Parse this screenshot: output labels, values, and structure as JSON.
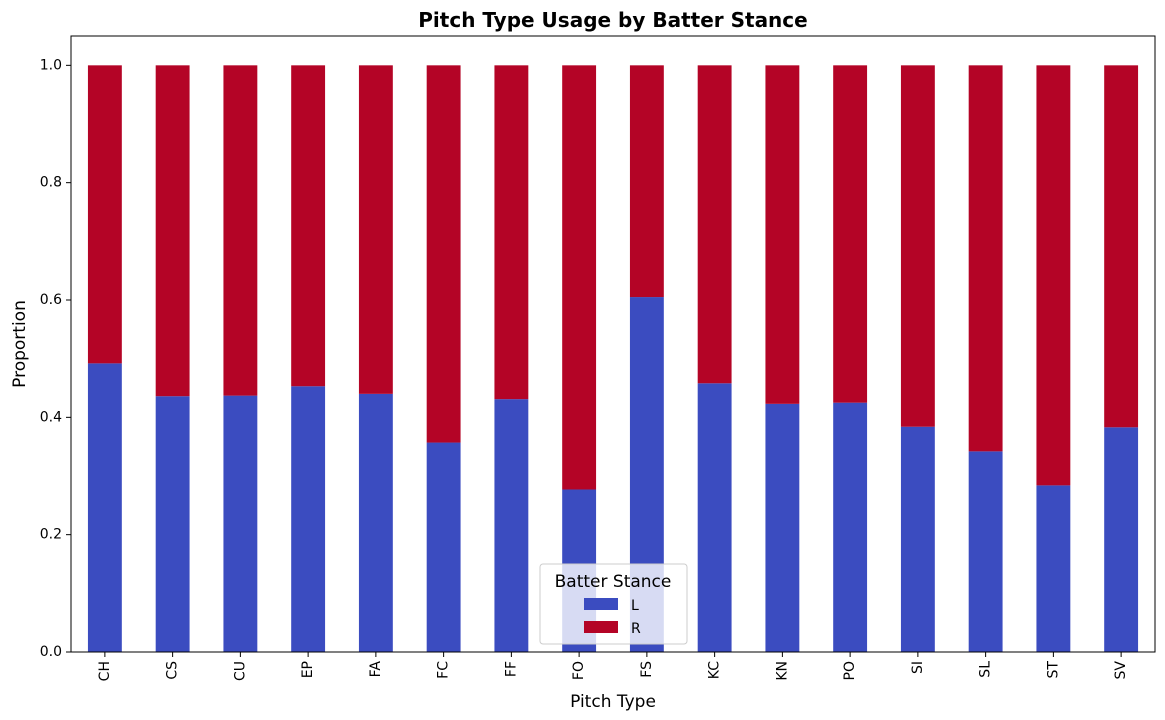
{
  "chart_data": {
    "type": "bar",
    "stacked": true,
    "title": "Pitch Type Usage by Batter Stance",
    "xlabel": "Pitch Type",
    "ylabel": "Proportion",
    "ylim": [
      0,
      1.05
    ],
    "yticks": [
      "0.0",
      "0.2",
      "0.4",
      "0.6",
      "0.8",
      "1.0"
    ],
    "categories": [
      "CH",
      "CS",
      "CU",
      "EP",
      "FA",
      "FC",
      "FF",
      "FO",
      "FS",
      "KC",
      "KN",
      "PO",
      "SI",
      "SL",
      "ST",
      "SV"
    ],
    "series": [
      {
        "name": "L",
        "color": "#3b4cc0",
        "values": [
          0.492,
          0.436,
          0.437,
          0.453,
          0.44,
          0.357,
          0.431,
          0.277,
          0.605,
          0.458,
          0.423,
          0.425,
          0.384,
          0.342,
          0.284,
          0.383
        ]
      },
      {
        "name": "R",
        "color": "#b40426",
        "values": [
          0.508,
          0.564,
          0.563,
          0.547,
          0.56,
          0.643,
          0.569,
          0.723,
          0.395,
          0.542,
          0.577,
          0.575,
          0.616,
          0.658,
          0.716,
          0.617
        ]
      }
    ],
    "grid": false,
    "legend": {
      "title": "Batter Stance",
      "placement": "bottom-center"
    }
  }
}
